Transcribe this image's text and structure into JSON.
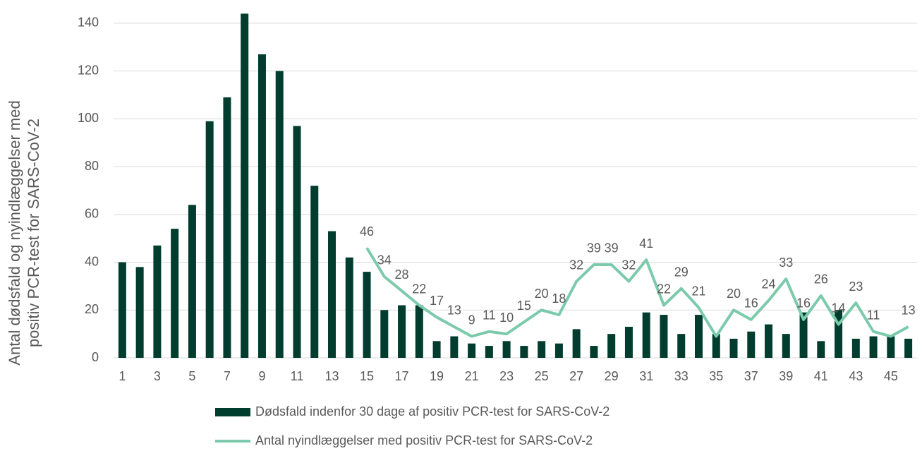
{
  "chart_data": {
    "type": "bar-line",
    "y_axis_label": "Antal dødsfald og nyindlæggelser med positiv PCR-test for SARS-CoV-2",
    "categories": [
      1,
      null,
      3,
      null,
      5,
      null,
      7,
      null,
      9,
      null,
      11,
      null,
      13,
      null,
      15,
      null,
      17,
      null,
      19,
      null,
      21,
      null,
      23,
      null,
      25,
      null,
      27,
      null,
      29,
      null,
      31,
      null,
      33,
      null,
      35,
      null,
      37,
      null,
      39,
      null,
      41,
      null,
      43,
      null,
      45,
      null
    ],
    "series": [
      {
        "name": "Dødsfald indenfor 30 dage af positiv PCR-test for SARS-CoV-2",
        "type": "bar",
        "color": "#003d2e",
        "values": [
          40,
          38,
          47,
          54,
          64,
          99,
          109,
          144,
          127,
          120,
          97,
          72,
          53,
          42,
          36,
          20,
          22,
          22,
          7,
          9,
          6,
          5,
          7,
          5,
          7,
          6,
          12,
          5,
          10,
          13,
          19,
          18,
          10,
          18,
          10,
          8,
          11,
          14,
          10,
          19,
          7,
          20,
          8,
          9,
          9,
          8
        ]
      },
      {
        "name": "Antal nyindlæggelser med positiv PCR-test for SARS-CoV-2",
        "type": "line",
        "color": "#7ccaac",
        "values": [
          null,
          null,
          null,
          null,
          null,
          null,
          null,
          null,
          null,
          null,
          null,
          null,
          null,
          null,
          46,
          34,
          28,
          22,
          17,
          13,
          9,
          11,
          10,
          15,
          20,
          18,
          32,
          39,
          39,
          32,
          41,
          22,
          29,
          21,
          9,
          20,
          16,
          24,
          33,
          16,
          26,
          14,
          23,
          11,
          9,
          13
        ],
        "value_labels": [
          null,
          null,
          null,
          null,
          null,
          null,
          null,
          null,
          null,
          null,
          null,
          null,
          null,
          null,
          "46",
          "34",
          "28",
          "22",
          "17",
          "13",
          "9",
          "11",
          "10",
          "15",
          "20",
          "18",
          "32",
          "39",
          "39",
          "32",
          "41",
          "22",
          "29",
          "21",
          null,
          "20",
          "16",
          "24",
          "33",
          "16",
          "26",
          "14",
          "23",
          "11",
          null,
          "13"
        ]
      }
    ],
    "ylim": [
      0,
      145
    ],
    "yticks": [
      0,
      20,
      40,
      60,
      80,
      100,
      120,
      140
    ],
    "grid": true
  }
}
